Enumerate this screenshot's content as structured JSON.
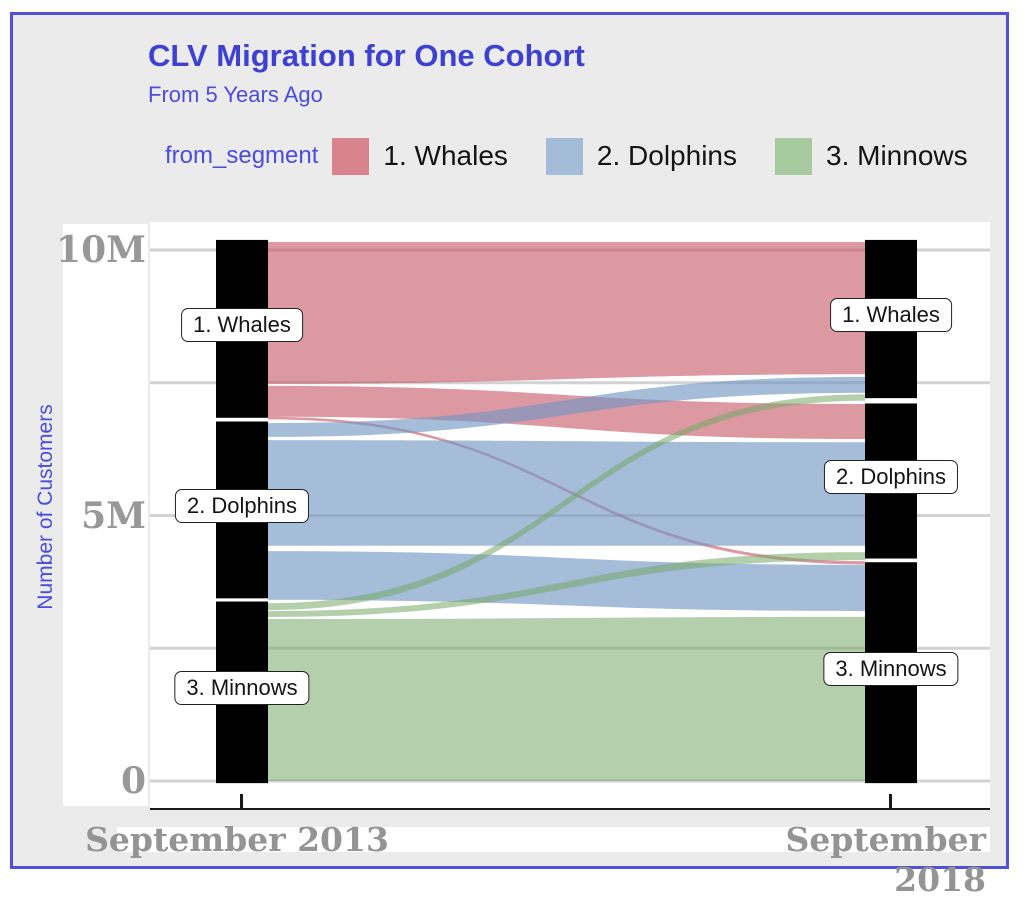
{
  "header": {
    "title": "CLV Migration for One Cohort",
    "subtitle": "From 5 Years Ago"
  },
  "legend": {
    "title": "from_segment",
    "items": [
      {
        "label": "1. Whales",
        "color": "#d9838f"
      },
      {
        "label": "2. Dolphins",
        "color": "#a4bcd8"
      },
      {
        "label": "3. Minnows",
        "color": "#a6ca9e"
      }
    ]
  },
  "colors": {
    "frame_border": "#4f52d8",
    "canvas_background": "#ebebeb",
    "panel_background": "#ffffff",
    "gridline": "#d2d2d2",
    "node_bar": "#000000",
    "axis_line": "#1a1a1a",
    "axis_text_gray": "#949494",
    "accent_blue_text": "#4b4dd8"
  },
  "chart_data": {
    "type": "alluvial",
    "title": "CLV Migration for One Cohort",
    "subtitle": "From 5 Years Ago",
    "legend_title": "from_segment",
    "x_categories": [
      "September 2013",
      "September 2018"
    ],
    "y_label": "Number of Customers",
    "y_unit": "customers (millions)",
    "y_domain": [
      0,
      10
    ],
    "y_ticks": [
      {
        "value": 10,
        "label": "10M"
      },
      {
        "value": 5,
        "label": "5M"
      },
      {
        "value": 0,
        "label": "0"
      }
    ],
    "gridlines": [
      0,
      2.5,
      5,
      7.5,
      10
    ],
    "grid": true,
    "legend_position": "top",
    "segments": {
      "whales": {
        "label": "1. Whales",
        "legend_color": "#d9838f",
        "flow_color": "#c4505f",
        "flow_opacity": 0.58
      },
      "dolphins": {
        "label": "2. Dolphins",
        "legend_color": "#a4bcd8",
        "flow_color": "#6f94c4",
        "flow_opacity": 0.62
      },
      "minnows": {
        "label": "3. Minnows",
        "legend_color": "#a6ca9e",
        "flow_color": "#74a868",
        "flow_opacity": 0.55
      }
    },
    "nodes": {
      "left": [
        {
          "segment": "whales",
          "value_millions": 3.3,
          "span": [
            10.19,
            6.84
          ]
        },
        {
          "segment": "dolphins",
          "value_millions": 3.3,
          "span": [
            6.77,
            3.44
          ]
        },
        {
          "segment": "minnows",
          "value_millions": 3.4,
          "span": [
            3.38,
            -0.04
          ]
        }
      ],
      "right": [
        {
          "segment": "whales",
          "value_millions": 3.0,
          "span": [
            10.19,
            7.21
          ]
        },
        {
          "segment": "dolphins",
          "value_millions": 2.9,
          "span": [
            7.11,
            4.19
          ]
        },
        {
          "segment": "minnows",
          "value_millions": 4.1,
          "span": [
            4.12,
            -0.04
          ]
        }
      ]
    },
    "flows": [
      {
        "from": "whales",
        "to": "whales",
        "value_millions": 2.55,
        "left_span": [
          10.15,
          7.48
        ],
        "right_span": [
          10.15,
          7.66
        ]
      },
      {
        "from": "whales",
        "to": "dolphins",
        "value_millions": 0.62,
        "left_span": [
          7.44,
          6.86
        ],
        "right_span": [
          7.1,
          6.44
        ]
      },
      {
        "from": "whales",
        "to": "minnows",
        "value_millions": 0.06,
        "left_span": [
          6.86,
          6.81
        ],
        "right_span": [
          4.14,
          4.08
        ]
      },
      {
        "from": "dolphins",
        "to": "whales",
        "value_millions": 0.28,
        "left_span": [
          6.74,
          6.48
        ],
        "right_span": [
          7.61,
          7.31
        ]
      },
      {
        "from": "dolphins",
        "to": "dolphins",
        "value_millions": 1.97,
        "left_span": [
          6.42,
          4.43
        ],
        "right_span": [
          6.38,
          4.43
        ]
      },
      {
        "from": "dolphins",
        "to": "minnows",
        "value_millions": 0.89,
        "left_span": [
          4.33,
          3.41
        ],
        "right_span": [
          4.07,
          3.2
        ]
      },
      {
        "from": "minnows",
        "to": "whales",
        "value_millions": 0.13,
        "left_span": [
          3.35,
          3.22
        ],
        "right_span": [
          7.28,
          7.16
        ]
      },
      {
        "from": "minnows",
        "to": "dolphins",
        "value_millions": 0.13,
        "left_span": [
          3.2,
          3.09
        ],
        "right_span": [
          4.31,
          4.16
        ]
      },
      {
        "from": "minnows",
        "to": "minnows",
        "value_millions": 3.07,
        "left_span": [
          3.05,
          0.0
        ],
        "right_span": [
          3.09,
          0.0
        ]
      }
    ]
  }
}
